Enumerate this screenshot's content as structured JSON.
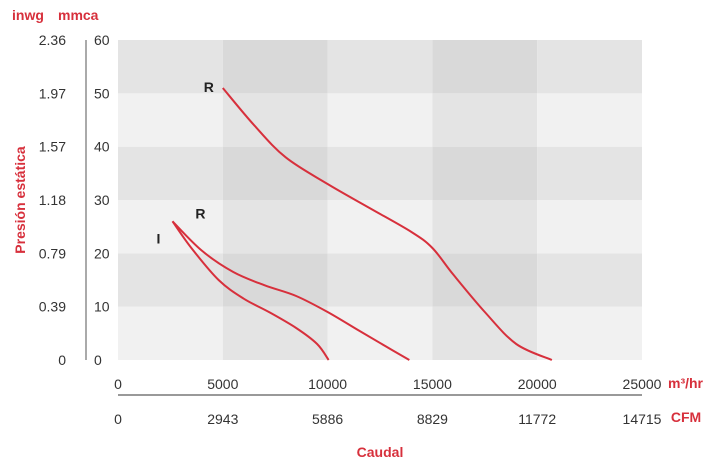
{
  "chart_data": {
    "type": "line",
    "title": "",
    "unit_labels": {
      "inwg": "inwg",
      "mmca": "mmca",
      "m3hr": "m³/hr",
      "cfm": "CFM"
    },
    "ylabel": "Presión estática",
    "xlabel": "Caudal",
    "x_ticks_m3hr": [
      "0",
      "5000",
      "10000",
      "15000",
      "20000",
      "25000"
    ],
    "x_ticks_cfm": [
      "0",
      "2943",
      "5886",
      "8829",
      "11772",
      "14715"
    ],
    "y_ticks_mmca": [
      "0",
      "10",
      "20",
      "30",
      "40",
      "50",
      "60"
    ],
    "y_ticks_inwg": [
      "0",
      "0.39",
      "0.79",
      "1.18",
      "1.57",
      "1.97",
      "2.36"
    ],
    "xlim": [
      0,
      25000
    ],
    "ylim": [
      0,
      60
    ],
    "background": "alternating grey bands",
    "series": [
      {
        "label": "R",
        "x": [
          5000,
          6500,
          8000,
          10000,
          12000,
          14000,
          15000,
          16000,
          17500,
          19000,
          20700
        ],
        "y": [
          51,
          44,
          38,
          33,
          28.5,
          24,
          21,
          16,
          9,
          3,
          0
        ]
      },
      {
        "label": "R",
        "x": [
          2600,
          4000,
          5500,
          7000,
          8500,
          10000,
          11500,
          12800,
          13900
        ],
        "y": [
          26,
          20.5,
          16.5,
          14,
          12,
          9,
          5.5,
          2.5,
          0
        ]
      },
      {
        "label": "I",
        "x": [
          2600,
          3500,
          4800,
          6000,
          7200,
          8500,
          9500,
          10050
        ],
        "y": [
          26,
          21,
          15,
          11.5,
          9,
          6,
          3,
          0
        ]
      }
    ],
    "colors": {
      "curves": "#d7303c",
      "axis_titles": "#d7303c",
      "text": "#333333"
    }
  }
}
